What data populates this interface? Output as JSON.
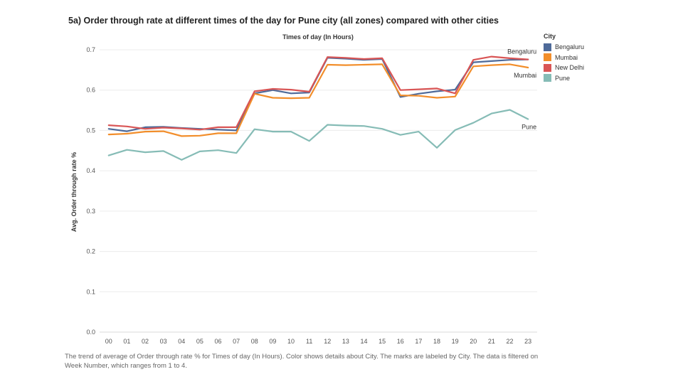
{
  "title": "5a) Order through rate at different times of the day for Pune city (all zones) compared with other cities",
  "caption": "The trend of average of Order through rate % for Times of day (In Hours).  Color shows details about City.  The marks are labeled by City. The data is filtered on Week Number, which ranges from 1 to 4.",
  "legend": {
    "title": "City",
    "items": [
      {
        "label": "Bengaluru",
        "color": "#4e6a99"
      },
      {
        "label": "Mumbai",
        "color": "#f28e2b"
      },
      {
        "label": "New Delhi",
        "color": "#d95555"
      },
      {
        "label": "Pune",
        "color": "#86bcb6"
      }
    ]
  },
  "chart_data": {
    "type": "line",
    "title": "5a) Order through rate at different times of the day for Pune city (all zones) compared with other cities",
    "xlabel": "Times of day (In Hours)",
    "ylabel": "Avg. Order through rate %",
    "categories": [
      "00",
      "01",
      "02",
      "03",
      "04",
      "05",
      "06",
      "07",
      "08",
      "09",
      "10",
      "11",
      "12",
      "13",
      "14",
      "15",
      "16",
      "17",
      "18",
      "19",
      "20",
      "21",
      "22",
      "23"
    ],
    "ylim": [
      0,
      0.7
    ],
    "yticks": [
      "0.0",
      "0.1",
      "0.2",
      "0.3",
      "0.4",
      "0.5",
      "0.6",
      "0.7"
    ],
    "grid": true,
    "legend_position": "right",
    "series": [
      {
        "name": "Bengaluru",
        "color": "#4e6a99",
        "values": [
          0.504,
          0.498,
          0.508,
          0.509,
          0.506,
          0.504,
          0.502,
          0.5,
          0.592,
          0.6,
          0.592,
          0.594,
          0.68,
          0.678,
          0.675,
          0.677,
          0.583,
          0.591,
          0.597,
          0.601,
          0.669,
          0.672,
          0.675,
          0.676
        ]
      },
      {
        "name": "Mumbai",
        "color": "#f28e2b",
        "values": [
          0.49,
          0.492,
          0.497,
          0.498,
          0.486,
          0.487,
          0.493,
          0.493,
          0.591,
          0.581,
          0.58,
          0.581,
          0.663,
          0.662,
          0.663,
          0.664,
          0.587,
          0.586,
          0.581,
          0.584,
          0.659,
          0.662,
          0.664,
          0.656
        ]
      },
      {
        "name": "New Delhi",
        "color": "#d95555",
        "values": [
          0.513,
          0.51,
          0.504,
          0.507,
          0.505,
          0.502,
          0.508,
          0.508,
          0.597,
          0.603,
          0.601,
          0.596,
          0.682,
          0.68,
          0.677,
          0.679,
          0.6,
          0.602,
          0.604,
          0.592,
          0.675,
          0.683,
          0.679,
          0.676
        ]
      },
      {
        "name": "Pune",
        "color": "#86bcb6",
        "values": [
          0.438,
          0.452,
          0.446,
          0.449,
          0.427,
          0.448,
          0.451,
          0.444,
          0.503,
          0.497,
          0.497,
          0.474,
          0.514,
          0.512,
          0.511,
          0.504,
          0.489,
          0.497,
          0.457,
          0.501,
          0.519,
          0.542,
          0.551,
          0.528
        ]
      }
    ],
    "series_labels": [
      {
        "text": "Bengaluru",
        "series": "Bengaluru"
      },
      {
        "text": "Mumbai",
        "series": "Mumbai"
      },
      {
        "text": "Pune",
        "series": "Pune"
      }
    ]
  }
}
